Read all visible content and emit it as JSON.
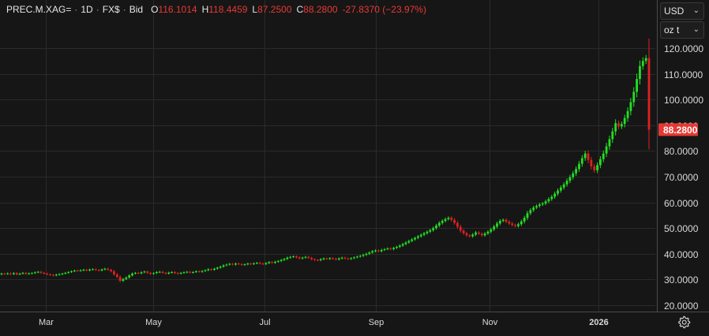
{
  "legend": {
    "symbol": "PREC.M.XAG=",
    "interval": "1D",
    "currency": "FX$",
    "side": "Bid",
    "open_key": "O",
    "open": "116.1014",
    "high_key": "H",
    "high": "118.4459",
    "low_key": "L",
    "low": "87.2500",
    "close_key": "C",
    "close": "88.2800",
    "change": "-27.8370 (−23.97%)"
  },
  "controls": {
    "currency_value": "USD",
    "unit_value": "oz t"
  },
  "colors": {
    "background": "#161616",
    "up": "#22e022",
    "down": "#e02020",
    "grid": "#2a2a2a",
    "last_price_badge": "#e53935"
  },
  "chart_data": {
    "type": "candlestick",
    "title": "",
    "y_ticks": [
      "120.0000",
      "110.0000",
      "100.0000",
      "90.0000",
      "80.0000",
      "70.0000",
      "60.0000",
      "50.0000",
      "40.0000",
      "30.0000",
      "20.0000"
    ],
    "y_tick_values": [
      120,
      110,
      100,
      90,
      80,
      70,
      60,
      50,
      40,
      30,
      20
    ],
    "x_ticks": [
      "Mar",
      "May",
      "Jul",
      "Sep",
      "Nov",
      "2026"
    ],
    "ylim": [
      17,
      125
    ],
    "last_price": 88.28,
    "last_price_label": "88.2800",
    "series_close": [
      32.3,
      32.2,
      32.4,
      32.1,
      32.5,
      32.0,
      32.3,
      32.6,
      32.2,
      32.4,
      32.5,
      32.8,
      33.0,
      32.6,
      32.3,
      32.0,
      31.8,
      31.6,
      31.9,
      32.1,
      32.3,
      32.6,
      32.9,
      33.2,
      33.5,
      33.4,
      33.6,
      33.8,
      33.5,
      33.9,
      34.0,
      33.7,
      33.5,
      33.9,
      34.2,
      33.8,
      33.2,
      32.0,
      31.0,
      29.5,
      30.2,
      30.8,
      31.6,
      32.3,
      32.6,
      32.4,
      32.8,
      33.1,
      32.6,
      32.2,
      32.5,
      32.9,
      33.0,
      32.6,
      32.3,
      32.7,
      32.9,
      32.5,
      32.3,
      32.6,
      32.8,
      33.0,
      32.7,
      32.9,
      33.2,
      33.0,
      33.3,
      33.6,
      34.0,
      33.8,
      34.2,
      34.6,
      35.0,
      35.5,
      35.8,
      36.1,
      35.8,
      36.2,
      36.0,
      35.7,
      35.9,
      36.2,
      36.0,
      36.3,
      36.5,
      36.2,
      36.0,
      36.4,
      36.8,
      36.5,
      36.9,
      37.2,
      37.6,
      38.0,
      38.5,
      38.8,
      39.0,
      38.6,
      38.2,
      38.5,
      38.8,
      38.4,
      37.9,
      37.6,
      37.5,
      37.9,
      38.2,
      38.0,
      38.3,
      38.1,
      37.8,
      38.2,
      38.5,
      38.2,
      38.0,
      38.3,
      38.6,
      38.9,
      39.2,
      39.6,
      40.0,
      40.5,
      41.0,
      41.3,
      41.0,
      41.5,
      41.8,
      42.1,
      41.8,
      42.3,
      42.7,
      43.2,
      43.8,
      44.4,
      45.0,
      45.6,
      46.2,
      46.8,
      47.4,
      48.0,
      48.6,
      49.2,
      50.0,
      51.0,
      52.0,
      52.8,
      53.5,
      54.0,
      53.2,
      52.0,
      50.5,
      49.0,
      48.0,
      47.2,
      46.8,
      47.5,
      48.3,
      47.8,
      47.2,
      47.9,
      48.6,
      49.5,
      50.6,
      51.8,
      52.8,
      53.2,
      52.5,
      51.8,
      51.2,
      50.8,
      51.5,
      52.6,
      54.0,
      55.8,
      57.0,
      58.0,
      58.6,
      59.2,
      59.6,
      60.4,
      61.3,
      62.2,
      63.4,
      64.6,
      65.8,
      67.0,
      68.4,
      69.8,
      71.3,
      73.0,
      75.0,
      77.2,
      79.0,
      76.5,
      74.0,
      72.5,
      74.5,
      76.8,
      79.0,
      81.8,
      84.6,
      87.6,
      90.8,
      89.5,
      90.5,
      92.8,
      95.5,
      99.0,
      103.0,
      108.0,
      113.0,
      115.0,
      116.1,
      88.28
    ]
  }
}
